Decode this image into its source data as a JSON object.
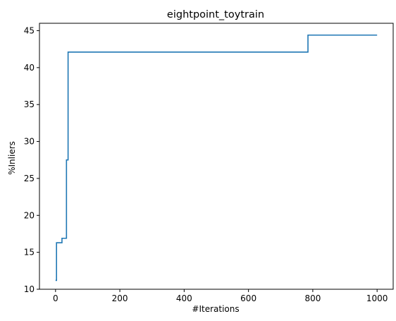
{
  "chart_data": {
    "type": "line",
    "title": "eightpoint_toytrain",
    "xlabel": "#Iterations",
    "ylabel": "%Inliers",
    "xlim": [
      -50,
      1050
    ],
    "ylim": [
      10,
      46
    ],
    "xticks": [
      0,
      200,
      400,
      600,
      800,
      1000
    ],
    "yticks": [
      10,
      15,
      20,
      25,
      30,
      35,
      40,
      45
    ],
    "grid": false,
    "series": [
      {
        "color": "#1f77b4",
        "step": true,
        "x": [
          0,
          3,
          20,
          34,
          39,
          42,
          785,
          1000
        ],
        "y": [
          11.2,
          16.3,
          16.9,
          27.5,
          42.1,
          42.1,
          44.4,
          44.4
        ]
      }
    ]
  }
}
